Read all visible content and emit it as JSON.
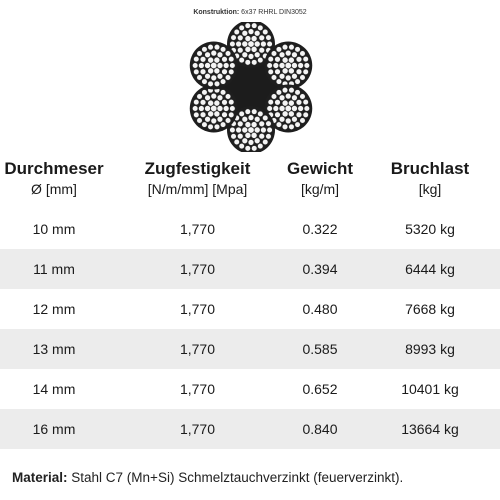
{
  "caption": {
    "label": "Konstruktion:",
    "value": "6x37 RHRL DIN3052"
  },
  "headers": [
    {
      "title": "Durchmeser",
      "unit": "Ø [mm]"
    },
    {
      "title": "Zugfestigkeit",
      "unit": "[N/m/mm] [Mpa]"
    },
    {
      "title": "Gewicht",
      "unit": "[kg/m]"
    },
    {
      "title": "Bruchlast",
      "unit": "[kg]"
    }
  ],
  "rows": [
    {
      "diameter": "10 mm",
      "strength": "1,770",
      "weight": "0.322",
      "breaking": "5320 kg",
      "shaded": false
    },
    {
      "diameter": "11 mm",
      "strength": "1,770",
      "weight": "0.394",
      "breaking": "6444 kg",
      "shaded": true
    },
    {
      "diameter": "12 mm",
      "strength": "1,770",
      "weight": "0.480",
      "breaking": "7668 kg",
      "shaded": false
    },
    {
      "diameter": "13 mm",
      "strength": "1,770",
      "weight": "0.585",
      "breaking": "8993 kg",
      "shaded": true
    },
    {
      "diameter": "14 mm",
      "strength": "1,770",
      "weight": "0.652",
      "breaking": "10401 kg",
      "shaded": false
    },
    {
      "diameter": "16 mm",
      "strength": "1,770",
      "weight": "0.840",
      "breaking": "13664 kg",
      "shaded": true
    }
  ],
  "note": {
    "label": "Material:",
    "text": " Stahl C7 (Mn+Si) Schmelztauchverzinkt (feuerverzinkt)."
  },
  "colors": {
    "row_shade": "#ececec",
    "core": "#1c1c1c"
  },
  "icons": {
    "rope": "wire-rope-cross-section-icon"
  }
}
